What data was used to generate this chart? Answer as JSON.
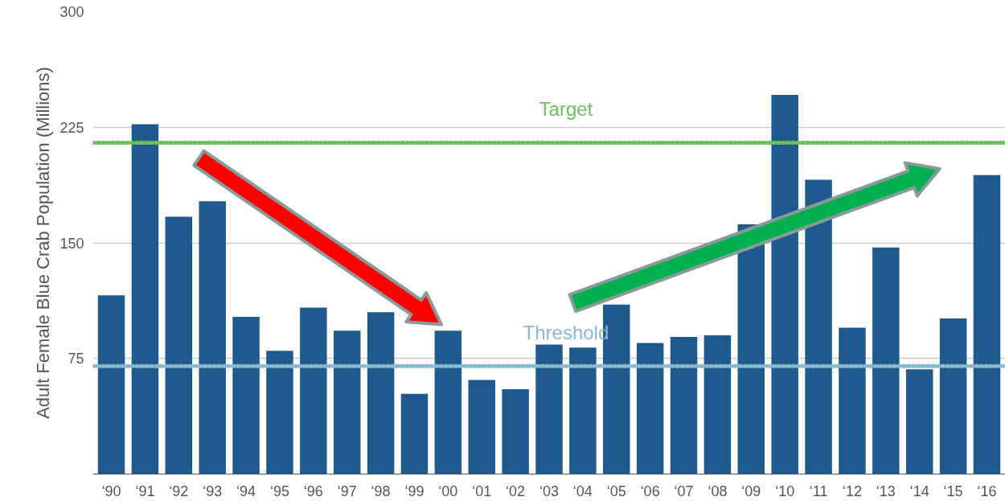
{
  "chart_data": {
    "type": "bar",
    "ylabel": "Adult Female Blue Crab Population (Millions)",
    "categories": [
      "‘90",
      "‘91",
      "‘92",
      "‘93",
      "‘94",
      "‘95",
      "‘96",
      "‘97",
      "‘98",
      "‘99",
      "‘00",
      "‘01",
      "‘02",
      "‘03",
      "‘04",
      "‘05",
      "‘06",
      "‘07",
      "‘08",
      "‘09",
      "‘10",
      "‘11",
      "‘12",
      "‘13",
      "‘14",
      "‘15",
      "‘16"
    ],
    "values": [
      116,
      227,
      167,
      177,
      102,
      80,
      108,
      93,
      105,
      52,
      93,
      61,
      55,
      84,
      82,
      110,
      85,
      89,
      90,
      162,
      246,
      191,
      95,
      147,
      68,
      101,
      194
    ],
    "color": "#1f5a8e",
    "ylim": [
      0,
      300
    ],
    "yticks": [
      75,
      150,
      225,
      300
    ],
    "grid": "y",
    "ref_lines": [
      {
        "axis": "y",
        "value": 215,
        "label": "Target",
        "color": "#6abf5e",
        "line_style": "dotted"
      },
      {
        "axis": "y",
        "value": 70,
        "label": "Threshold",
        "color": "#8ab8cf",
        "line_style": "dotted"
      }
    ]
  }
}
